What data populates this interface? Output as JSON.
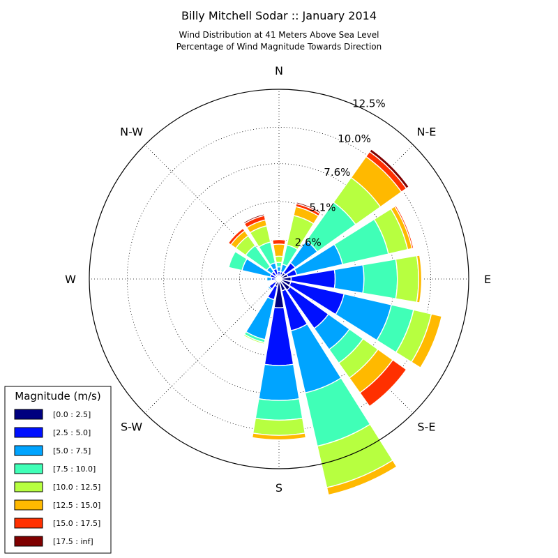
{
  "chart_data": {
    "type": "windrose",
    "title": "Billy Mitchell Sodar :: January 2014",
    "subtitle_lines": [
      "Wind Distribution at 41 Meters Above Sea Level",
      "Percentage of Wind Magnitude Towards Direction"
    ],
    "radial_max_pct": 12.5,
    "radial_ticks": [
      {
        "value": 2.6,
        "label": "2.6%"
      },
      {
        "value": 5.1,
        "label": "5.1%"
      },
      {
        "value": 7.6,
        "label": "7.6%"
      },
      {
        "value": 10.0,
        "label": "10.0%"
      },
      {
        "value": 12.5,
        "label": "12.5%"
      }
    ],
    "direction_labels": [
      {
        "angle": 0,
        "label": "N"
      },
      {
        "angle": 45,
        "label": "N-E"
      },
      {
        "angle": 90,
        "label": "E"
      },
      {
        "angle": 135,
        "label": "S-E"
      },
      {
        "angle": 180,
        "label": "S"
      },
      {
        "angle": 225,
        "label": "S-W"
      },
      {
        "angle": 270,
        "label": "W"
      },
      {
        "angle": 315,
        "label": "N-W"
      }
    ],
    "bins": [
      {
        "label": "[0.0 : 2.5]",
        "color": "#00007f"
      },
      {
        "label": "[2.5 : 5.0]",
        "color": "#0010ff"
      },
      {
        "label": "[5.0 : 7.5]",
        "color": "#00a4ff"
      },
      {
        "label": "[7.5 : 10.0]",
        "color": "#40ffb7"
      },
      {
        "label": "[10.0 : 12.5]",
        "color": "#b7ff40"
      },
      {
        "label": "[12.5 : 15.0]",
        "color": "#ffb900"
      },
      {
        "label": "[15.0 : 17.5]",
        "color": "#ff3000"
      },
      {
        "label": "[17.5 : inf]",
        "color": "#7f0000"
      }
    ],
    "sectors": [
      {
        "dir": 0,
        "cumulative": [
          0.2,
          0.5,
          0.8,
          1.1,
          1.5,
          2.3,
          2.6,
          2.6
        ]
      },
      {
        "dir": 22.5,
        "cumulative": [
          0.3,
          0.5,
          1.0,
          2.3,
          4.3,
          4.9,
          5.1,
          5.2
        ]
      },
      {
        "dir": 45,
        "cumulative": [
          0.5,
          1.3,
          3.1,
          6.2,
          8.2,
          9.9,
          10.3,
          10.5
        ]
      },
      {
        "dir": 67.5,
        "cumulative": [
          0.6,
          1.2,
          4.3,
          7.4,
          8.7,
          9.0,
          9.1,
          9.1
        ]
      },
      {
        "dir": 90,
        "cumulative": [
          0.8,
          3.7,
          5.6,
          7.8,
          9.2,
          9.4,
          9.4,
          9.4
        ]
      },
      {
        "dir": 112.5,
        "cumulative": [
          0.8,
          4.4,
          7.6,
          9.1,
          10.3,
          11.0,
          11.0,
          11.0
        ]
      },
      {
        "dir": 135,
        "cumulative": [
          0.9,
          4.0,
          5.7,
          6.8,
          8.0,
          9.2,
          10.3,
          10.3
        ]
      },
      {
        "dir": 157.5,
        "cumulative": [
          0.8,
          3.5,
          7.7,
          11.3,
          14.1,
          14.6,
          14.6,
          14.6
        ]
      },
      {
        "dir": 180,
        "cumulative": [
          1.9,
          5.7,
          8.0,
          9.3,
          10.3,
          10.6,
          10.6,
          10.6
        ]
      },
      {
        "dir": 202.5,
        "cumulative": [
          0.5,
          1.4,
          4.1,
          4.3,
          4.4,
          4.4,
          4.4,
          4.4
        ]
      },
      {
        "dir": 225,
        "cumulative": [
          0.3,
          0.8,
          0.9,
          0.9,
          0.9,
          0.9,
          0.9,
          0.9
        ]
      },
      {
        "dir": 247.5,
        "cumulative": [
          0.1,
          0.3,
          0.3,
          0.3,
          0.3,
          0.3,
          0.3,
          0.3
        ]
      },
      {
        "dir": 270,
        "cumulative": [
          0.2,
          0.5,
          0.8,
          0.8,
          0.8,
          0.8,
          0.8,
          0.8
        ]
      },
      {
        "dir": 292.5,
        "cumulative": [
          0.2,
          0.6,
          2.5,
          3.4,
          3.4,
          3.4,
          3.4,
          3.4
        ]
      },
      {
        "dir": 315,
        "cumulative": [
          0.3,
          0.6,
          1.0,
          2.7,
          3.5,
          3.9,
          4.1,
          4.1
        ]
      },
      {
        "dir": 337.5,
        "cumulative": [
          0.3,
          0.7,
          1.1,
          2.5,
          3.6,
          4.0,
          4.3,
          4.4
        ]
      }
    ]
  },
  "legend": {
    "title": "Magnitude (m/s)",
    "placement": "bottom-left"
  }
}
